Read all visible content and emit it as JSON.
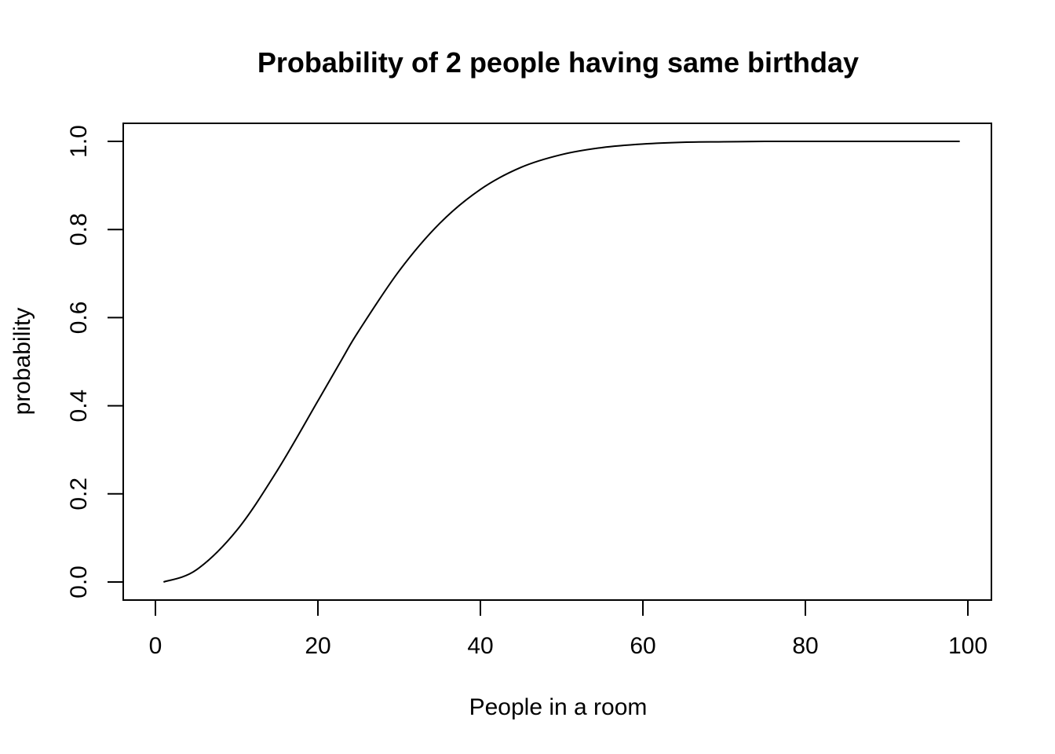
{
  "chart_data": {
    "type": "line",
    "title": "Probability of 2 people having same birthday",
    "xlabel": "People in a room",
    "ylabel": "probability",
    "xlim": [
      0,
      100
    ],
    "ylim": [
      0.0,
      1.0
    ],
    "x_ticks": [
      0,
      20,
      40,
      60,
      80,
      100
    ],
    "x_tick_labels": [
      "0",
      "20",
      "40",
      "60",
      "80",
      "100"
    ],
    "y_ticks": [
      0.0,
      0.2,
      0.4,
      0.6,
      0.8,
      1.0
    ],
    "y_tick_labels": [
      "0.0",
      "0.2",
      "0.4",
      "0.6",
      "0.8",
      "1.0"
    ],
    "grid": false,
    "legend": "none",
    "line_color": "#000000",
    "series": [
      {
        "x": [
          1,
          5,
          10,
          15,
          20,
          23,
          25,
          30,
          35,
          40,
          45,
          50,
          55,
          60,
          65,
          70,
          75,
          80,
          85,
          90,
          95,
          99
        ],
        "values": [
          0.0,
          0.027,
          0.117,
          0.253,
          0.411,
          0.507,
          0.569,
          0.706,
          0.814,
          0.891,
          0.941,
          0.97,
          0.986,
          0.994,
          0.998,
          0.999,
          1.0,
          1.0,
          1.0,
          1.0,
          1.0,
          1.0
        ]
      }
    ]
  }
}
